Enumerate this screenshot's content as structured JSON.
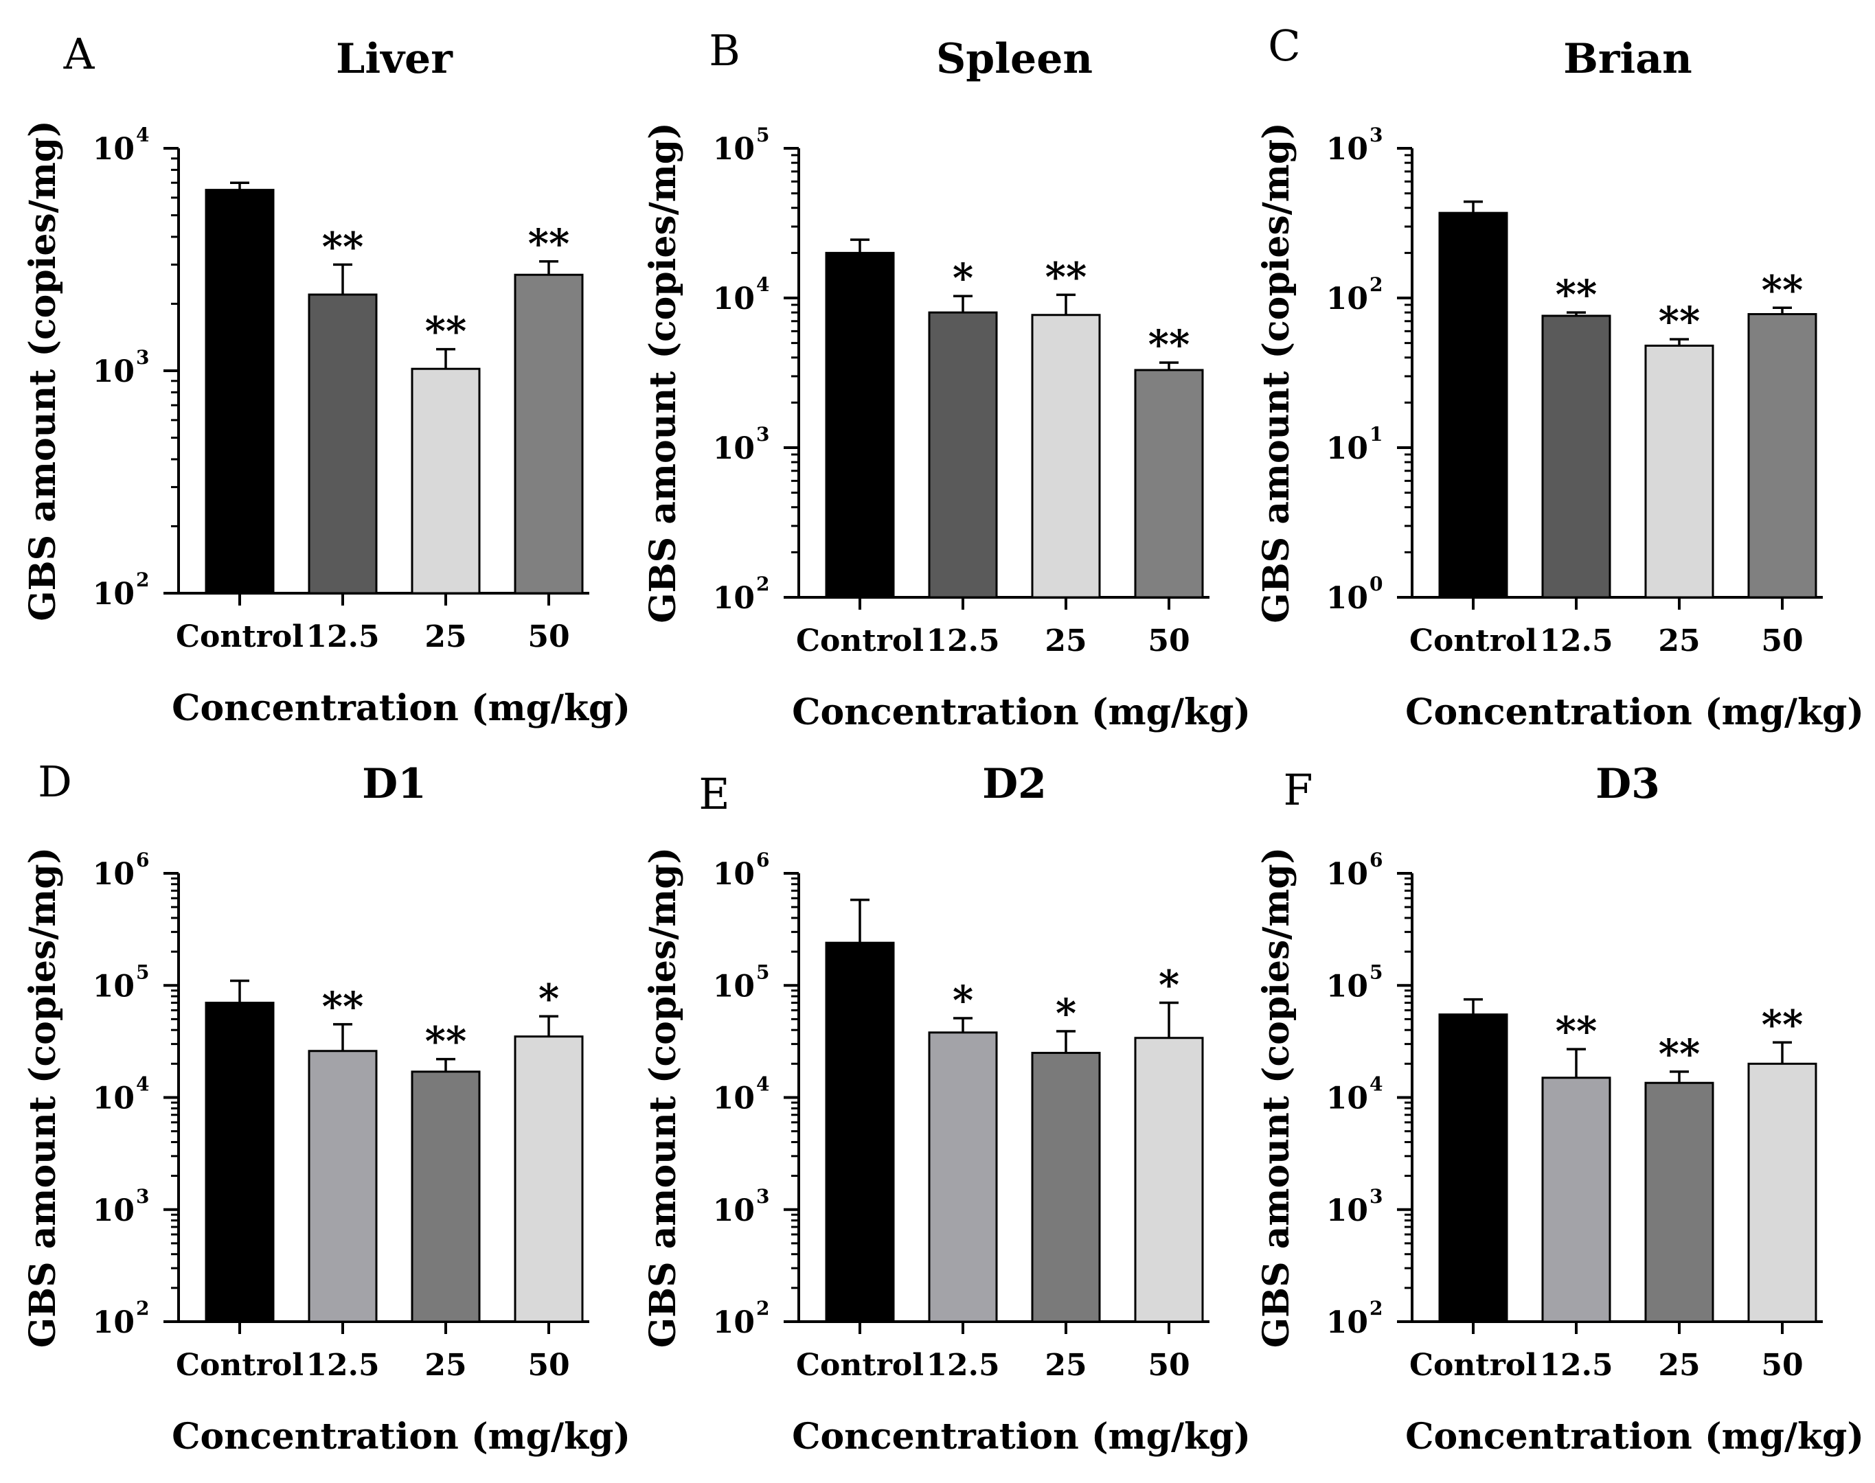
{
  "chart_data": [
    {
      "type": "bar",
      "panel": "A",
      "title": "Liver",
      "xlabel": "Concentration (mg/kg)",
      "ylabel": "GBS amount (copies/mg)",
      "yscale": "log",
      "ylim": [
        100,
        10000
      ],
      "yticks": [
        {
          "base": "10",
          "exp": "2"
        },
        {
          "base": "10",
          "exp": "3"
        },
        {
          "base": "10",
          "exp": "4"
        }
      ],
      "categories": [
        "Control",
        "12.5",
        "25",
        "50"
      ],
      "values": [
        6500,
        2200,
        1020,
        2700
      ],
      "errors": [
        7000,
        3000,
        1250,
        3100
      ],
      "significance": [
        "",
        "**",
        "**",
        "**"
      ],
      "colors": [
        "#000000",
        "#5a5a5a",
        "#d9d9d9",
        "#808080"
      ]
    },
    {
      "type": "bar",
      "panel": "B",
      "title": "Spleen",
      "xlabel": "Concentration (mg/kg)",
      "ylabel": "GBS amount (copies/mg)",
      "yscale": "log",
      "ylim": [
        100,
        100000
      ],
      "yticks": [
        {
          "base": "10",
          "exp": "2"
        },
        {
          "base": "10",
          "exp": "3"
        },
        {
          "base": "10",
          "exp": "4"
        },
        {
          "base": "10",
          "exp": "5"
        }
      ],
      "categories": [
        "Control",
        "12.5",
        "25",
        "50"
      ],
      "values": [
        20000,
        8000,
        7700,
        3300
      ],
      "errors": [
        24500,
        10300,
        10500,
        3700
      ],
      "significance": [
        "",
        "*",
        "**",
        "**"
      ],
      "colors": [
        "#000000",
        "#5a5a5a",
        "#d9d9d9",
        "#808080"
      ]
    },
    {
      "type": "bar",
      "panel": "C",
      "title": "Brian",
      "xlabel": "Concentration (mg/kg)",
      "ylabel": "GBS amount (copies/mg)",
      "yscale": "log",
      "ylim": [
        1,
        1000
      ],
      "yticks": [
        {
          "base": "10",
          "exp": "0"
        },
        {
          "base": "10",
          "exp": "1"
        },
        {
          "base": "10",
          "exp": "2"
        },
        {
          "base": "10",
          "exp": "3"
        }
      ],
      "categories": [
        "Control",
        "12.5",
        "25",
        "50"
      ],
      "values": [
        370,
        76,
        48,
        78
      ],
      "errors": [
        440,
        80,
        53,
        86
      ],
      "significance": [
        "",
        "**",
        "**",
        "**"
      ],
      "colors": [
        "#000000",
        "#5a5a5a",
        "#d9d9d9",
        "#808080"
      ]
    },
    {
      "type": "bar",
      "panel": "D",
      "title": "D1",
      "xlabel": "Concentration (mg/kg)",
      "ylabel": "GBS amount (copies/mg)",
      "yscale": "log",
      "ylim": [
        100,
        1000000
      ],
      "yticks": [
        {
          "base": "10",
          "exp": "2"
        },
        {
          "base": "10",
          "exp": "3"
        },
        {
          "base": "10",
          "exp": "4"
        },
        {
          "base": "10",
          "exp": "5"
        },
        {
          "base": "10",
          "exp": "6"
        }
      ],
      "categories": [
        "Control",
        "12.5",
        "25",
        "50"
      ],
      "values": [
        70000,
        26000,
        17000,
        35000
      ],
      "errors": [
        110000,
        45000,
        22000,
        53000
      ],
      "significance": [
        "",
        "**",
        "**",
        "*"
      ],
      "colors": [
        "#000000",
        "#a3a3a8",
        "#7a7a7a",
        "#d9d9d9"
      ]
    },
    {
      "type": "bar",
      "panel": "E",
      "title": "D2",
      "xlabel": "Concentration (mg/kg)",
      "ylabel": "GBS amount (copies/mg)",
      "yscale": "log",
      "ylim": [
        100,
        1000000
      ],
      "yticks": [
        {
          "base": "10",
          "exp": "2"
        },
        {
          "base": "10",
          "exp": "3"
        },
        {
          "base": "10",
          "exp": "4"
        },
        {
          "base": "10",
          "exp": "5"
        },
        {
          "base": "10",
          "exp": "6"
        }
      ],
      "categories": [
        "Control",
        "12.5",
        "25",
        "50"
      ],
      "values": [
        240000,
        38000,
        25000,
        34000
      ],
      "errors": [
        580000,
        51000,
        39000,
        70000
      ],
      "significance": [
        "",
        "*",
        "*",
        "*"
      ],
      "colors": [
        "#000000",
        "#a3a3a8",
        "#7a7a7a",
        "#d9d9d9"
      ]
    },
    {
      "type": "bar",
      "panel": "F",
      "title": "D3",
      "xlabel": "Concentration (mg/kg)",
      "ylabel": "GBS amount (copies/mg)",
      "yscale": "log",
      "ylim": [
        100,
        1000000
      ],
      "yticks": [
        {
          "base": "10",
          "exp": "2"
        },
        {
          "base": "10",
          "exp": "3"
        },
        {
          "base": "10",
          "exp": "4"
        },
        {
          "base": "10",
          "exp": "5"
        },
        {
          "base": "10",
          "exp": "6"
        }
      ],
      "categories": [
        "Control",
        "12.5",
        "25",
        "50"
      ],
      "values": [
        55000,
        15000,
        13500,
        20000
      ],
      "errors": [
        75000,
        27000,
        17000,
        31000
      ],
      "significance": [
        "",
        "**",
        "**",
        "**"
      ],
      "colors": [
        "#000000",
        "#a3a3a8",
        "#7a7a7a",
        "#d9d9d9"
      ]
    }
  ]
}
